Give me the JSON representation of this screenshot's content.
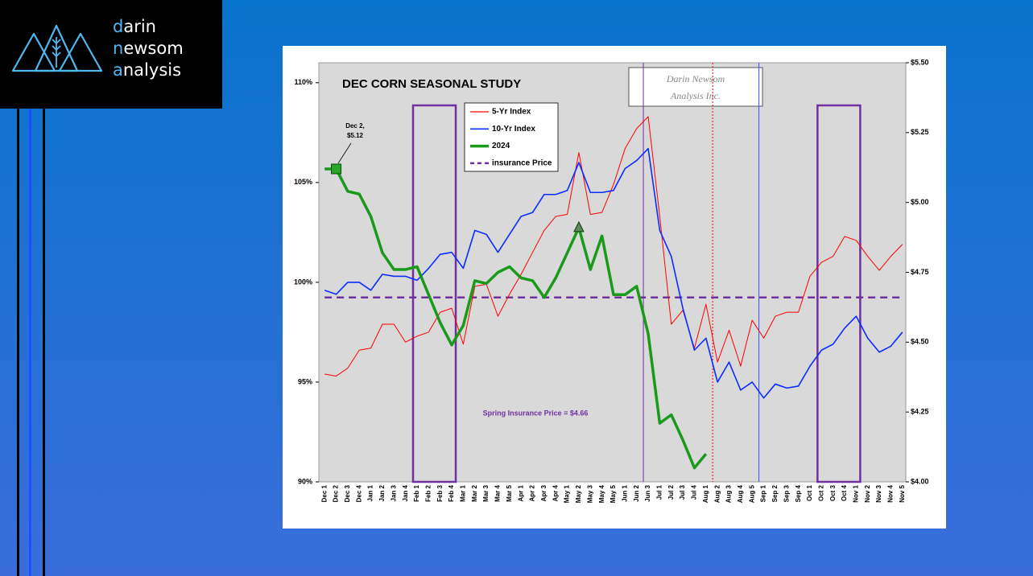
{
  "logo": {
    "lines": [
      "darin",
      "newsom",
      "analysis"
    ]
  },
  "chart_data": {
    "type": "line",
    "title": "DEC CORN SEASONAL STUDY",
    "watermark": [
      "Darin Newsom",
      "Analysis Inc."
    ],
    "categories": [
      "Dec 1",
      "Dec 2",
      "Dec 3",
      "Dec 4",
      "Jan 1",
      "Jan 2",
      "Jan 3",
      "Jan 4",
      "Feb 1",
      "Feb 2",
      "Feb 3",
      "Feb 4",
      "Mar 1",
      "Mar 2",
      "Mar 3",
      "Mar 4",
      "Mar 5",
      "Apr 1",
      "Apr 2",
      "Apr 3",
      "Apr 4",
      "May 1",
      "May 2",
      "May 3",
      "May 4",
      "May 5",
      "Jun 1",
      "Jun 2",
      "Jun 3",
      "Jul 1",
      "Jul 2",
      "Jul 3",
      "Jul 4",
      "Aug 1",
      "Aug 2",
      "Aug 3",
      "Aug 4",
      "Aug 5",
      "Sep 1",
      "Sep 2",
      "Sep 3",
      "Sep 4",
      "Oct 1",
      "Oct 2",
      "Oct 3",
      "Oct 4",
      "Nov 1",
      "Nov 2",
      "Nov 3",
      "Nov 4",
      "Nov 5"
    ],
    "series": [
      {
        "name": "5-Yr Index",
        "color": "#ff0000",
        "line_width": 1,
        "values": [
          95.4,
          95.3,
          95.7,
          96.6,
          96.7,
          97.9,
          97.9,
          97.0,
          97.3,
          97.5,
          98.5,
          98.7,
          96.9,
          99.8,
          99.9,
          98.3,
          99.4,
          100.4,
          101.5,
          102.6,
          103.3,
          103.4,
          106.5,
          103.4,
          103.5,
          104.9,
          106.7,
          107.7,
          108.3,
          103.3,
          97.9,
          98.6,
          96.7,
          98.9,
          96.0,
          97.6,
          95.8,
          98.1,
          97.2,
          98.3,
          98.5,
          98.5,
          100.3,
          101.0,
          101.3,
          102.3,
          102.1,
          101.3,
          100.6,
          101.3,
          101.9
        ]
      },
      {
        "name": "10-Yr Index",
        "color": "#0a2cff",
        "line_width": 1.6,
        "values": [
          99.6,
          99.4,
          100.0,
          100.0,
          99.6,
          100.4,
          100.3,
          100.3,
          100.1,
          100.7,
          101.4,
          101.5,
          100.7,
          102.6,
          102.4,
          101.5,
          102.4,
          103.3,
          103.5,
          104.4,
          104.4,
          104.6,
          106.0,
          104.5,
          104.5,
          104.6,
          105.7,
          106.1,
          106.7,
          102.6,
          101.3,
          98.7,
          96.6,
          97.2,
          95.0,
          96.0,
          94.6,
          95.0,
          94.2,
          94.9,
          94.7,
          94.8,
          95.8,
          96.6,
          96.9,
          97.7,
          98.3,
          97.2,
          96.5,
          96.8,
          97.5
        ]
      },
      {
        "name": "2024",
        "color": "#1a9a1a",
        "line_width": 3.5,
        "axis": "y2",
        "values": [
          5.12,
          5.12,
          5.04,
          5.03,
          4.95,
          4.82,
          4.76,
          4.76,
          4.77,
          4.67,
          4.57,
          4.49,
          4.56,
          4.72,
          4.71,
          4.75,
          4.77,
          4.73,
          4.72,
          4.66,
          4.73,
          4.82,
          4.91,
          4.76,
          4.88,
          4.67,
          4.67,
          4.7,
          4.53,
          4.21,
          4.24,
          4.15,
          4.05,
          4.1,
          null,
          null,
          null,
          null,
          null,
          null,
          null,
          null,
          null,
          null,
          null,
          null,
          null,
          null,
          null,
          null,
          null
        ],
        "markers": [
          {
            "category": "Dec 2",
            "shape": "square"
          },
          {
            "category": "May 2",
            "shape": "triangle"
          }
        ]
      }
    ],
    "reference_lines": [
      {
        "name": "insurance Price",
        "value": 4.66,
        "axis": "y2",
        "color": "#7030a0",
        "style": "dashed"
      }
    ],
    "highlight_ranges": [
      {
        "from": "Feb 1",
        "to": "Feb 4",
        "color": "#7030a0"
      },
      {
        "from": "Oct 2",
        "to": "Nov 1",
        "color": "#7030a0"
      }
    ],
    "vertical_lines": [
      {
        "category": "Jun 3",
        "color": "#7030a0",
        "style": "solid"
      },
      {
        "category": "Aug 2",
        "color": "#ff0000",
        "style": "dotted"
      },
      {
        "category": "Sep 1",
        "color": "#3355ff",
        "style": "solid"
      }
    ],
    "annotations": [
      {
        "lines": [
          "Dec 2,",
          "$5.12"
        ]
      },
      {
        "lines": [
          "Spring Insurance Price = $4.66"
        ],
        "color": "#7030a0"
      }
    ],
    "ylim": [
      90,
      111
    ],
    "yticks": [
      {
        "value": 90,
        "label": "90%"
      },
      {
        "value": 95,
        "label": "95%"
      },
      {
        "value": 100,
        "label": "100%"
      },
      {
        "value": 105,
        "label": "105%"
      },
      {
        "value": 110,
        "label": "110%"
      }
    ],
    "y2lim": [
      4.0,
      5.5
    ],
    "y2ticks": [
      {
        "value": 4.0,
        "label": "$4.00"
      },
      {
        "value": 4.25,
        "label": "$4.25"
      },
      {
        "value": 4.5,
        "label": "$4.50"
      },
      {
        "value": 4.75,
        "label": "$4.75"
      },
      {
        "value": 5.0,
        "label": "$5.00"
      },
      {
        "value": 5.25,
        "label": "$5.25"
      },
      {
        "value": 5.5,
        "label": "$5.50"
      }
    ],
    "grid": false
  }
}
